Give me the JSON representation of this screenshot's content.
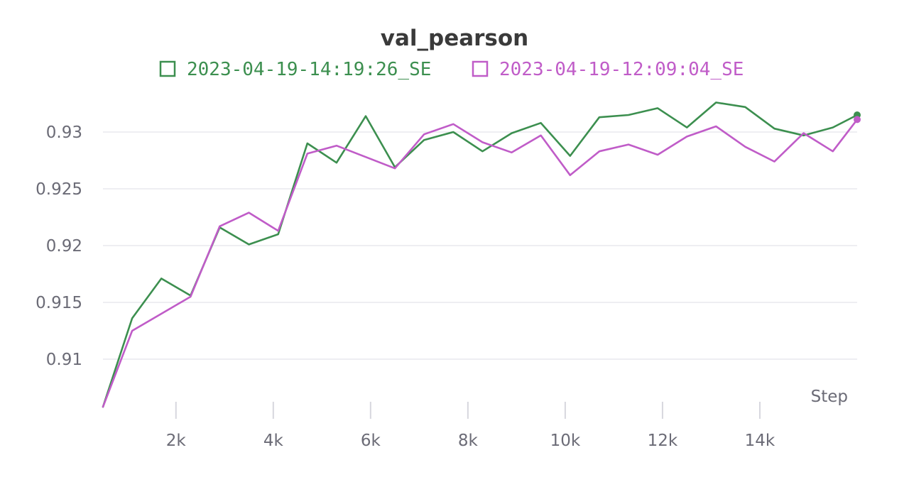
{
  "chart_data": {
    "type": "line",
    "title": "val_pearson",
    "xlabel": "Step",
    "ylabel": "",
    "xlim": [
      500,
      16000
    ],
    "ylim": [
      0.9055,
      0.9335
    ],
    "xticks": [
      2000,
      4000,
      6000,
      8000,
      10000,
      12000,
      14000
    ],
    "xtick_labels": [
      "2k",
      "4k",
      "6k",
      "8k",
      "10k",
      "12k",
      "14k"
    ],
    "yticks": [
      0.91,
      0.915,
      0.92,
      0.925,
      0.93
    ],
    "ytick_labels": [
      "0.91",
      "0.915",
      "0.92",
      "0.925",
      "0.93"
    ],
    "grid": true,
    "legend_position": "top-center",
    "series": [
      {
        "name": "2023-04-19-14:19:26_SE",
        "color": "#3c8f4f",
        "x": [
          500,
          1100,
          1700,
          2300,
          2900,
          3500,
          4100,
          4700,
          5300,
          5900,
          6500,
          7100,
          7700,
          8300,
          8900,
          9500,
          10100,
          10700,
          11300,
          11900,
          12500,
          13100,
          13700,
          14300,
          14900,
          15500,
          16000
        ],
        "values": [
          0.9058,
          0.9136,
          0.9171,
          0.9156,
          0.9216,
          0.9201,
          0.921,
          0.929,
          0.9273,
          0.9314,
          0.9269,
          0.9293,
          0.93,
          0.9283,
          0.9299,
          0.9308,
          0.9279,
          0.9313,
          0.9315,
          0.9321,
          0.9304,
          0.9326,
          0.9322,
          0.9303,
          0.9297,
          0.9304,
          0.9315
        ]
      },
      {
        "name": "2023-04-19-12:09:04_SE",
        "color": "#c05cc8",
        "x": [
          500,
          1100,
          1700,
          2300,
          2900,
          3500,
          4100,
          4700,
          5300,
          5900,
          6500,
          7100,
          7700,
          8300,
          8900,
          9500,
          10100,
          10700,
          11300,
          11900,
          12500,
          13100,
          13700,
          14300,
          14900,
          15500,
          16000
        ],
        "values": [
          0.9058,
          0.9125,
          0.914,
          0.9155,
          0.9217,
          0.9229,
          0.9213,
          0.9281,
          0.9288,
          0.9278,
          0.9268,
          0.9298,
          0.9307,
          0.9291,
          0.9282,
          0.9297,
          0.9262,
          0.9283,
          0.9289,
          0.928,
          0.9296,
          0.9305,
          0.9287,
          0.9274,
          0.9299,
          0.9283,
          0.9311
        ]
      }
    ]
  }
}
